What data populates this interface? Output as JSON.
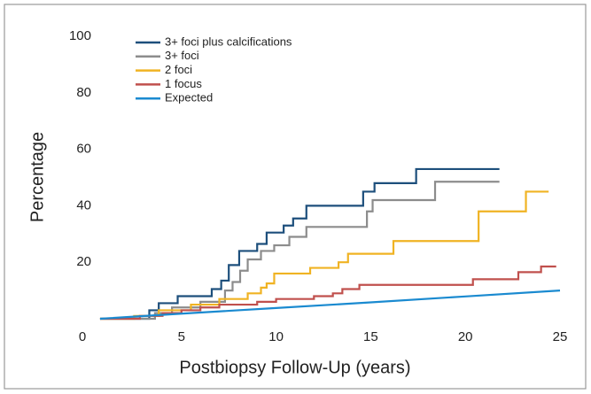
{
  "chart_data": {
    "type": "step",
    "x_label": "Postbiopsy Follow-Up (years)",
    "y_label": "Percentage",
    "xlim": [
      0,
      25
    ],
    "ylim": [
      0,
      100
    ],
    "xticks": [
      0,
      5,
      10,
      15,
      20,
      25
    ],
    "yticks": [
      20,
      40,
      60,
      80,
      100
    ],
    "legend": "upper left",
    "series": [
      {
        "name": "3+ foci plus calcifications",
        "color": "#1d4f7c",
        "step": true,
        "x": [
          0.7,
          3.3,
          3.8,
          4.8,
          6.6,
          7.1,
          7.5,
          8.05,
          9,
          9.5,
          10.4,
          10.9,
          11.6,
          14.6,
          15.2,
          17.4,
          21.8
        ],
        "values": [
          0,
          3,
          5.5,
          8,
          10.5,
          13.5,
          19,
          24,
          26.5,
          30.5,
          33,
          35.5,
          40,
          45,
          48,
          53,
          53
        ]
      },
      {
        "name": "3+ foci",
        "color": "#8c8c8c",
        "step": true,
        "x": [
          0.7,
          3.6,
          4.5,
          6,
          7.3,
          7.7,
          8.1,
          8.5,
          9.2,
          9.9,
          10.7,
          11.6,
          14.8,
          15.1,
          18.4,
          21.8
        ],
        "values": [
          0,
          2,
          4,
          6,
          10,
          13,
          17,
          21,
          24,
          26,
          29,
          32.5,
          38,
          42,
          48.5,
          48.5
        ]
      },
      {
        "name": "2 foci",
        "color": "#f0b323",
        "step": true,
        "x": [
          0.7,
          2.5,
          3.8,
          5.5,
          7,
          8.5,
          9.2,
          9.5,
          9.9,
          11.8,
          13.3,
          13.8,
          16.2,
          20.7,
          23.2,
          24.4
        ],
        "values": [
          0,
          1,
          3,
          5,
          7,
          9,
          11,
          12.5,
          16,
          18,
          20,
          23,
          27.5,
          38,
          45,
          45
        ]
      },
      {
        "name": "1 focus",
        "color": "#c0504d",
        "step": true,
        "x": [
          0.7,
          2.8,
          4,
          5,
          6,
          7,
          9,
          10,
          12,
          13,
          13.5,
          14.4,
          20.4,
          22.8,
          24,
          24.8
        ],
        "values": [
          0,
          1,
          2,
          3,
          4,
          5,
          6,
          7,
          8,
          9,
          10.5,
          12,
          14,
          16.5,
          18.5,
          18.5
        ]
      },
      {
        "name": "Expected",
        "color": "#1a8ad0",
        "step": false,
        "x": [
          0.7,
          5,
          10,
          15,
          20,
          25
        ],
        "values": [
          0,
          1.8,
          3.8,
          5.8,
          7.9,
          10
        ]
      }
    ]
  }
}
